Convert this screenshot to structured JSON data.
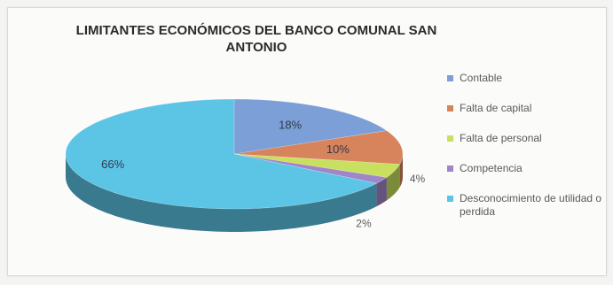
{
  "chart_data": {
    "type": "pie",
    "title": "LIMITANTES ECONÓMICOS DEL BANCO COMUNAL SAN ANTONIO",
    "legend_position": "right",
    "three_d": true,
    "slices": [
      {
        "name": "Contable",
        "value": 18,
        "label": "18%",
        "color": "#7b9fd6"
      },
      {
        "name": "Falta de capital",
        "value": 10,
        "label": "10%",
        "color": "#d7835c"
      },
      {
        "name": "Falta de personal",
        "value": 4,
        "label": "4%",
        "color": "#c8e05e"
      },
      {
        "name": "Competencia",
        "value": 2,
        "label": "2%",
        "color": "#9f86c9"
      },
      {
        "name": "Desconocimiento de utilidad o perdida",
        "value": 66,
        "label": "66%",
        "color": "#5cc5e6"
      }
    ]
  }
}
